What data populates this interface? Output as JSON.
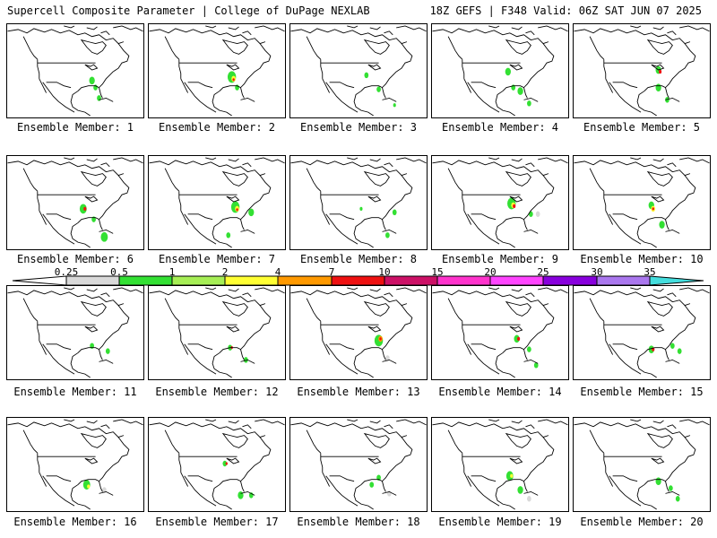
{
  "header": {
    "left_title": "Supercell Composite Parameter | College of DuPage NEXLAB",
    "right_title": "18Z GEFS | F348 Valid: 06Z SAT JUN 07 2025"
  },
  "panel_label_prefix": "Ensemble Member: ",
  "members": [
    1,
    2,
    3,
    4,
    5,
    6,
    7,
    8,
    9,
    10,
    11,
    12,
    13,
    14,
    15,
    16,
    17,
    18,
    19,
    20
  ],
  "colorbar": {
    "ticks": [
      "0.25",
      "0.5",
      "1",
      "2",
      "4",
      "7",
      "10",
      "15",
      "20",
      "25",
      "30",
      "35"
    ],
    "colors": [
      "#d9d9d9",
      "#33e033",
      "#a6ee55",
      "#ffff33",
      "#ff9900",
      "#ee1111",
      "#cc1166",
      "#ff33cc",
      "#ff44ff",
      "#8800dd",
      "#aa77ee",
      "#44dddd"
    ]
  },
  "colors": {
    "map_line": "#000000",
    "light": "#d9d9d9",
    "green": "#33e033",
    "yellow": "#ffff33",
    "orange": "#ff9900",
    "red": "#ee1111"
  }
}
